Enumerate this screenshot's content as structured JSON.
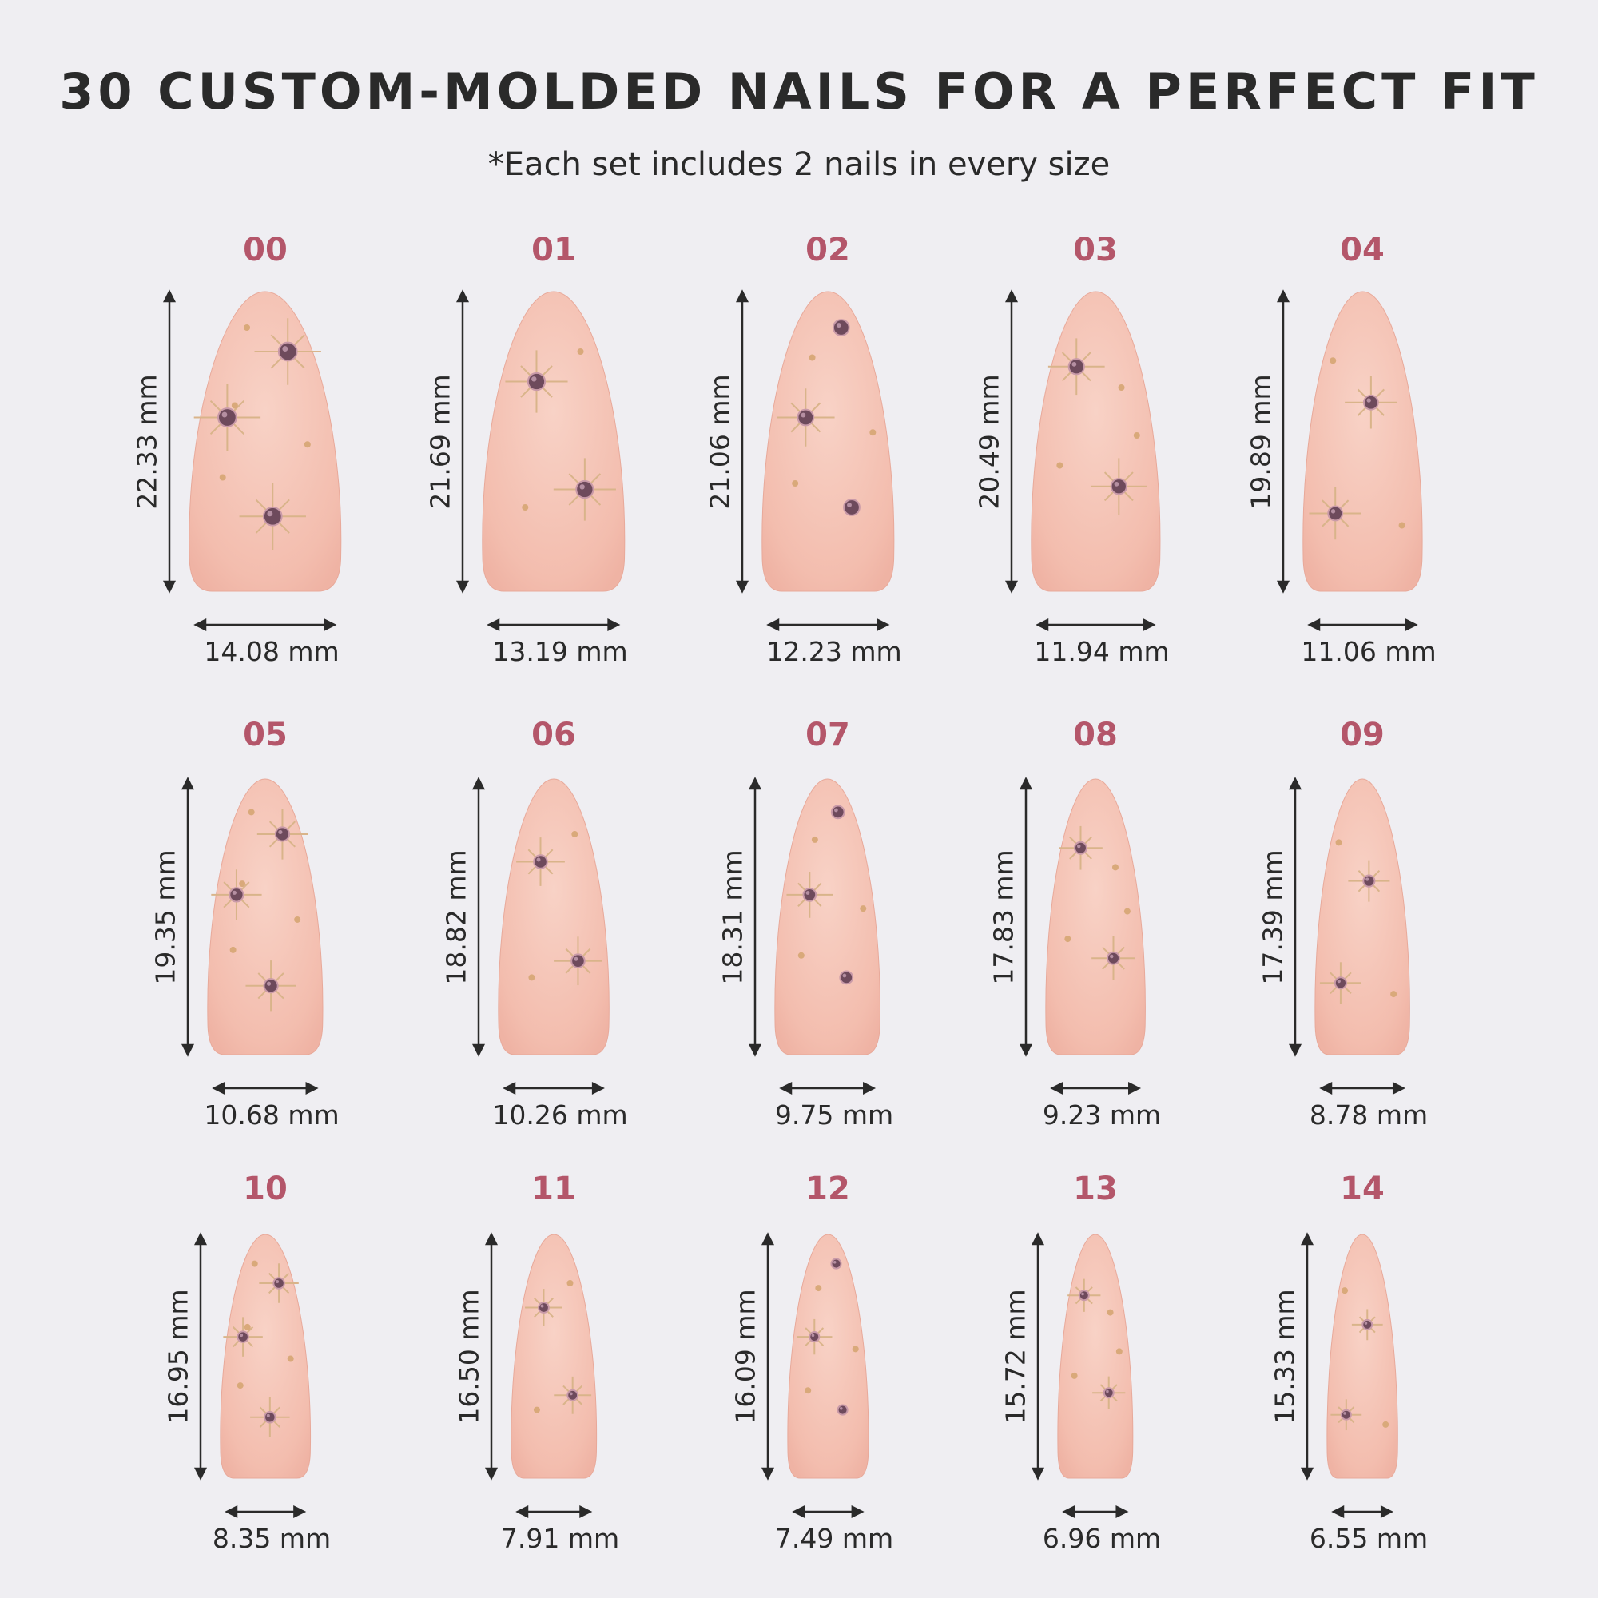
{
  "title": "30 CUSTOM-MOLDED NAILS FOR A PERFECT FIT",
  "subtitle": "*Each set includes 2 nails in every size",
  "colors": {
    "background": "#efeef2",
    "size_number": "#b4566a",
    "text": "#2a2a2a",
    "nail_base": "#f4c3b6",
    "gem": "#6e4a5c",
    "star_lines": "#d9b48a"
  },
  "nails": [
    {
      "size": "00",
      "length": "22.33 mm",
      "width": "14.08 mm"
    },
    {
      "size": "01",
      "length": "21.69 mm",
      "width": "13.19 mm"
    },
    {
      "size": "02",
      "length": "21.06 mm",
      "width": "12.23 mm"
    },
    {
      "size": "03",
      "length": "20.49 mm",
      "width": "11.94 mm"
    },
    {
      "size": "04",
      "length": "19.89 mm",
      "width": "11.06 mm"
    },
    {
      "size": "05",
      "length": "19.35 mm",
      "width": "10.68 mm"
    },
    {
      "size": "06",
      "length": "18.82 mm",
      "width": "10.26 mm"
    },
    {
      "size": "07",
      "length": "18.31 mm",
      "width": "9.75 mm"
    },
    {
      "size": "08",
      "length": "17.83 mm",
      "width": "9.23 mm"
    },
    {
      "size": "09",
      "length": "17.39 mm",
      "width": "8.78 mm"
    },
    {
      "size": "10",
      "length": "16.95 mm",
      "width": "8.35 mm"
    },
    {
      "size": "11",
      "length": "16.50 mm",
      "width": "7.91 mm"
    },
    {
      "size": "12",
      "length": "16.09 mm",
      "width": "7.49 mm"
    },
    {
      "size": "13",
      "length": "15.72 mm",
      "width": "6.96 mm"
    },
    {
      "size": "14",
      "length": "15.33 mm",
      "width": "6.55 mm"
    }
  ]
}
